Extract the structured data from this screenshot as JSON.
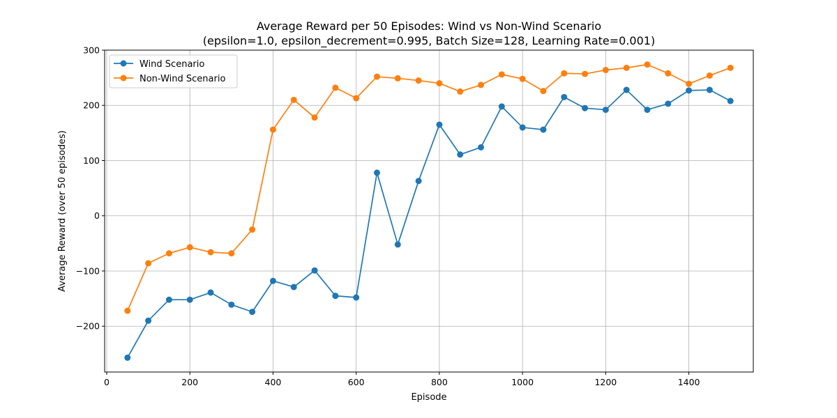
{
  "chart_data": {
    "type": "line",
    "title": "Average Reward per 50 Episodes: Wind vs Non-Wind Scenario",
    "subtitle": "(epsilon=1.0, epsilon_decrement=0.995, Batch Size=128, Learning Rate=0.001)",
    "xlabel": "Episode",
    "ylabel": "Average Reward (over 50 episodes)",
    "xlim": [
      -5,
      1555
    ],
    "ylim": [
      -283,
      300
    ],
    "xticks": [
      0,
      200,
      400,
      600,
      800,
      1000,
      1200,
      1400
    ],
    "yticks": [
      -200,
      -100,
      0,
      100,
      200,
      300
    ],
    "xtick_labels": [
      "0",
      "200",
      "400",
      "600",
      "800",
      "1000",
      "1200",
      "1400"
    ],
    "ytick_labels": [
      "−200",
      "−100",
      "0",
      "100",
      "200",
      "300"
    ],
    "grid": true,
    "legend_position": "top-left",
    "x": [
      50,
      100,
      150,
      200,
      250,
      300,
      350,
      400,
      450,
      500,
      550,
      600,
      650,
      700,
      750,
      800,
      850,
      900,
      950,
      1000,
      1050,
      1100,
      1150,
      1200,
      1250,
      1300,
      1350,
      1400,
      1450,
      1500
    ],
    "series": [
      {
        "name": "Wind Scenario",
        "color": "#1f77b4",
        "values": [
          -257,
          -190,
          -152,
          -152,
          -139,
          -161,
          -174,
          -118,
          -129,
          -99,
          -145,
          -148,
          78,
          -52,
          63,
          165,
          111,
          124,
          198,
          160,
          156,
          215,
          195,
          192,
          228,
          192,
          203,
          227,
          228,
          208
        ]
      },
      {
        "name": "Non-Wind Scenario",
        "color": "#ff7f0e",
        "values": [
          -172,
          -86,
          -68,
          -57,
          -66,
          -68,
          -25,
          156,
          210,
          178,
          232,
          213,
          252,
          249,
          245,
          240,
          225,
          237,
          256,
          248,
          226,
          258,
          257,
          264,
          268,
          274,
          258,
          239,
          254,
          268
        ]
      }
    ]
  }
}
